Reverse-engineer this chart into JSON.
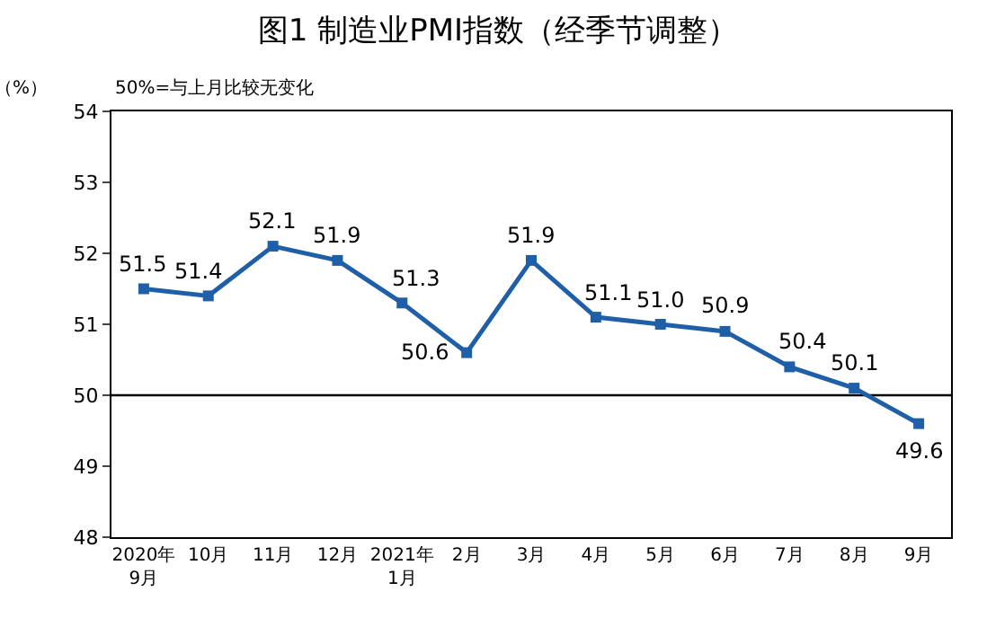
{
  "chart_data": {
    "type": "line",
    "title": "图1 制造业PMI指数（经季节调整）",
    "ylabel": "（%）",
    "annotations": [
      "50%=与上月比较无变化"
    ],
    "categories": [
      "2020年\n9月",
      "10月",
      "11月",
      "12月",
      "2021年\n1月",
      "2月",
      "3月",
      "4月",
      "5月",
      "6月",
      "7月",
      "8月",
      "9月"
    ],
    "series": [
      {
        "color": "#1f5fa8",
        "values": [
          51.5,
          51.4,
          52.1,
          51.9,
          51.3,
          50.6,
          51.9,
          51.1,
          51.0,
          50.9,
          50.4,
          50.1,
          49.6
        ]
      }
    ],
    "value_labels": [
      "51.5",
      "51.4",
      "52.1",
      "51.9",
      "51.3",
      "50.6",
      "51.9",
      "51.1",
      "51.0",
      "50.9",
      "50.4",
      "50.1",
      "49.6"
    ],
    "ylim": [
      48,
      54
    ],
    "yticks": [
      48,
      49,
      50,
      51,
      52,
      53,
      54
    ],
    "ref_lines": [
      {
        "axis": "y",
        "value": 50,
        "color": "#000000"
      }
    ],
    "grid": false,
    "legend": false,
    "marker": "square",
    "line_style": "solid"
  }
}
